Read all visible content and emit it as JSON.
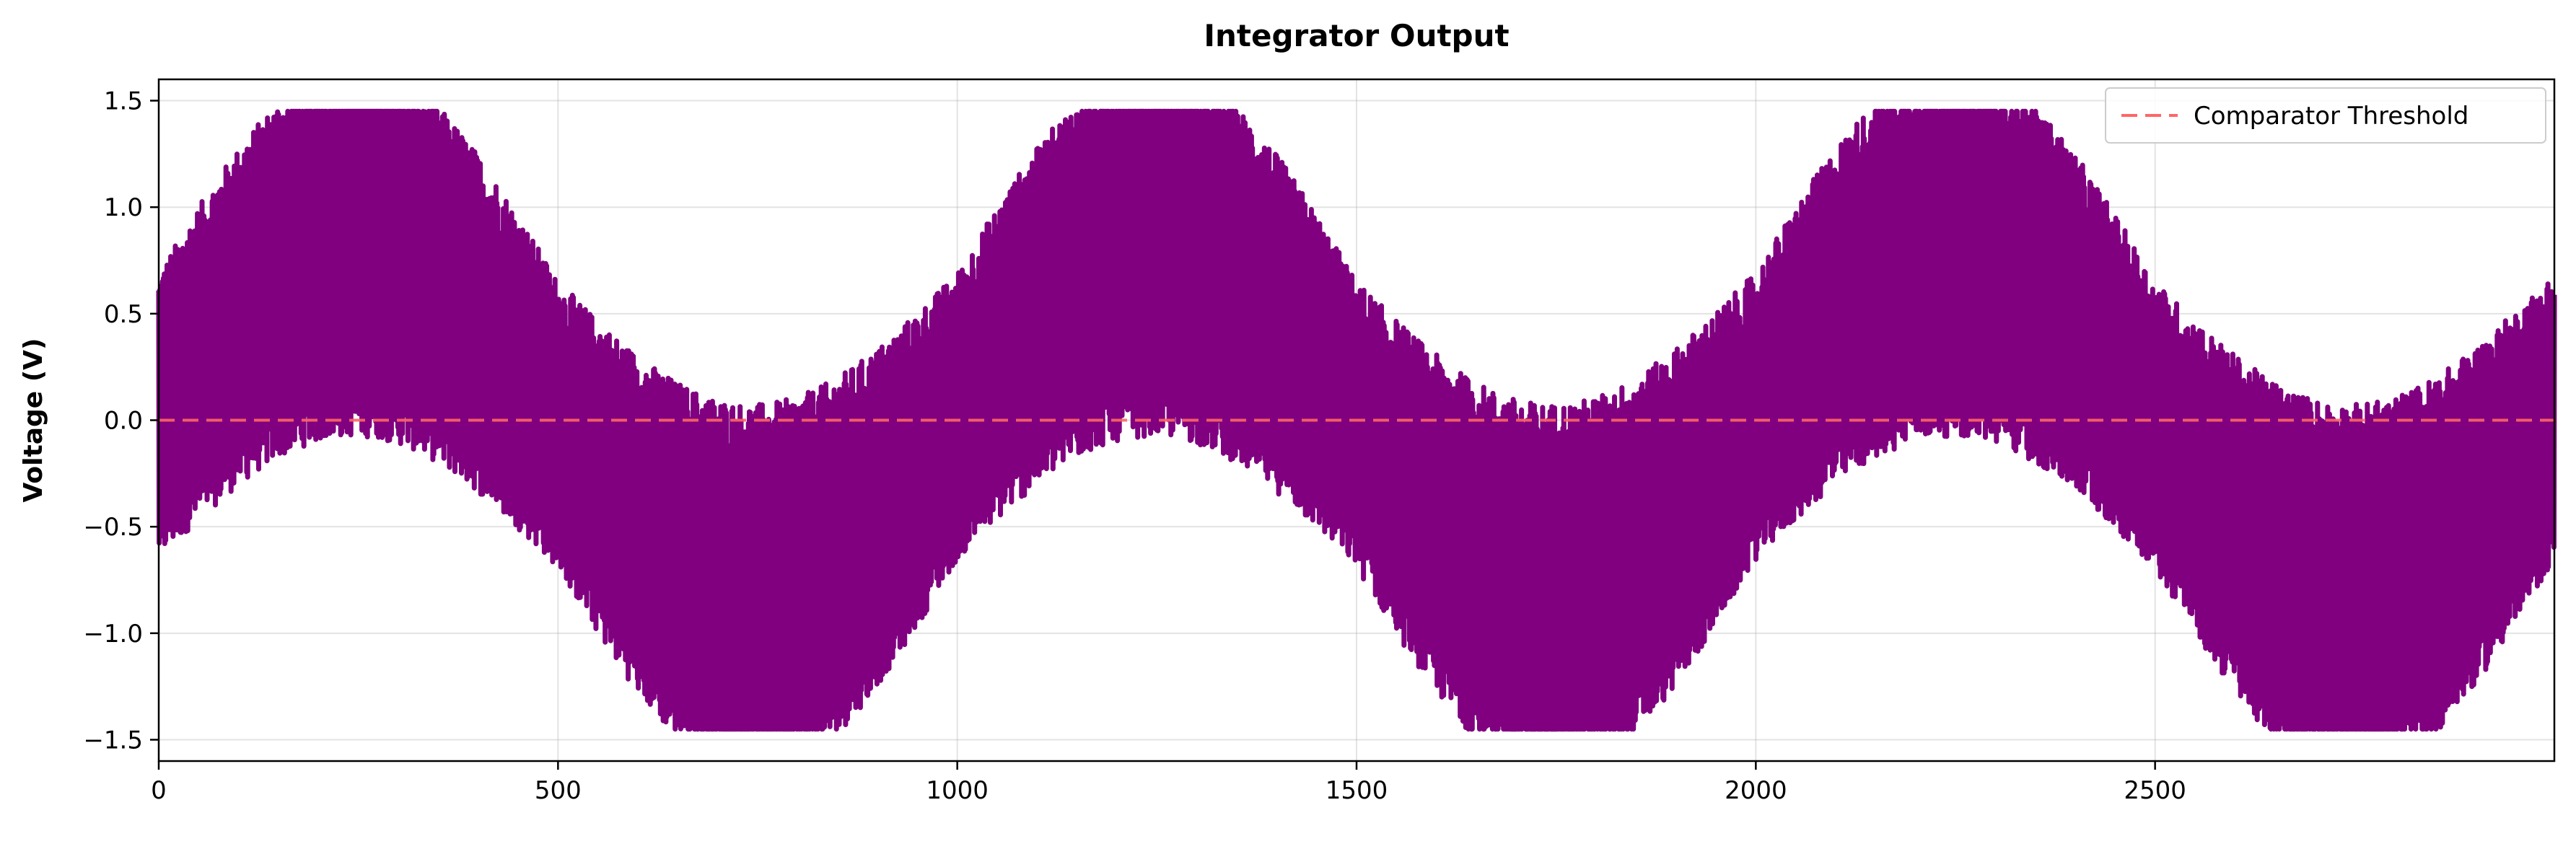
{
  "chart_data": {
    "type": "line",
    "title": "Integrator Output",
    "xlabel": "",
    "ylabel": "Voltage (V)",
    "xlim": [
      0,
      3000
    ],
    "ylim": [
      -1.6,
      1.6
    ],
    "xticks": [
      0,
      500,
      1000,
      1500,
      2000,
      2500
    ],
    "xtick_labels": [
      "0",
      "500",
      "1000",
      "1500",
      "2000",
      "2500"
    ],
    "yticks": [
      -1.5,
      -1.0,
      -0.5,
      0.0,
      0.5,
      1.0,
      1.5
    ],
    "ytick_labels": [
      "−1.5",
      "−1.0",
      "−0.5",
      "0.0",
      "0.5",
      "1.0",
      "1.5"
    ],
    "grid": true,
    "legend": {
      "placement": "top-right",
      "entries": [
        {
          "label": "Comparator Threshold",
          "style": "dashed",
          "color": "#ff6666"
        }
      ]
    },
    "series": [
      {
        "style": "solid",
        "color": "#800080",
        "description_values": {
          "x_start": 0,
          "x_end": 3000,
          "envelope_period": 1000,
          "max_value": 1.45,
          "min_value": -1.45
        }
      },
      {
        "name": "Comparator Threshold",
        "style": "dashed",
        "color": "#ff6666",
        "x": [
          0,
          3000
        ],
        "y": [
          0.0,
          0.0
        ]
      }
    ]
  }
}
